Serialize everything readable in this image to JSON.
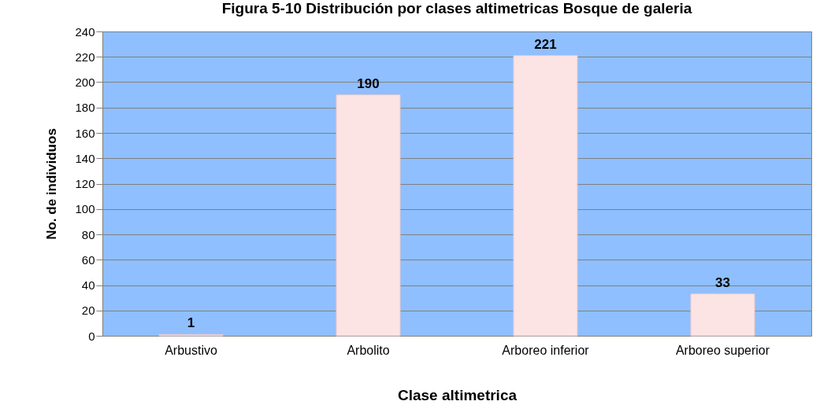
{
  "chart_data": {
    "type": "bar",
    "title": "Figura 5-10 Distribución por clases altimetricas Bosque de galeria",
    "xlabel": "Clase altimetrica",
    "ylabel": "No. de individuos",
    "categories": [
      "Arbustivo",
      "Arbolito",
      "Arboreo inferior",
      "Arboreo superior"
    ],
    "values": [
      1,
      190,
      221,
      33
    ],
    "color": "#fde4e4",
    "ylim": [
      0,
      240
    ],
    "yticks": [
      0,
      20,
      40,
      60,
      80,
      100,
      120,
      140,
      160,
      180,
      200,
      220,
      240
    ],
    "grid": "y",
    "data_labels": true
  }
}
